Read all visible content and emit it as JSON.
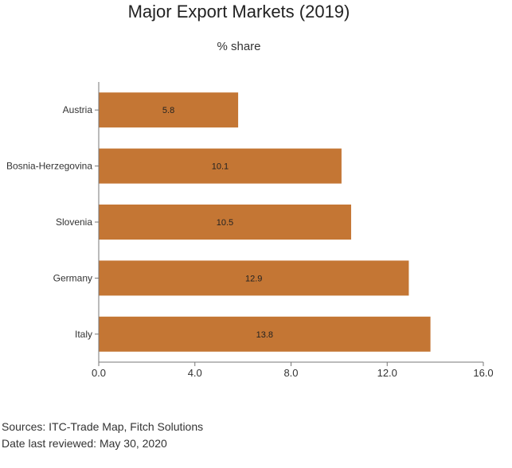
{
  "title": "Major Export Markets (2019)",
  "subtitle": "% share",
  "colors": {
    "bar": "#c47634",
    "axis": "#777777",
    "text": "#333333"
  },
  "chart_data": {
    "type": "bar",
    "orientation": "horizontal",
    "categories": [
      "Austria",
      "Bosnia-Herzegovina",
      "Slovenia",
      "Germany",
      "Italy"
    ],
    "values": [
      5.8,
      10.1,
      10.5,
      12.9,
      13.8
    ],
    "data_labels": [
      "5.8",
      "10.1",
      "10.5",
      "12.9",
      "13.8"
    ],
    "xlim": [
      0,
      16
    ],
    "xticks": [
      0,
      4,
      8,
      12,
      16
    ],
    "xtick_labels": [
      "0.0",
      "4.0",
      "8.0",
      "12.0",
      "16.0"
    ],
    "grid": false,
    "legend": "none"
  },
  "sources": [
    "Sources: ITC-Trade Map, Fitch Solutions",
    "Date last reviewed: May 30, 2020"
  ]
}
